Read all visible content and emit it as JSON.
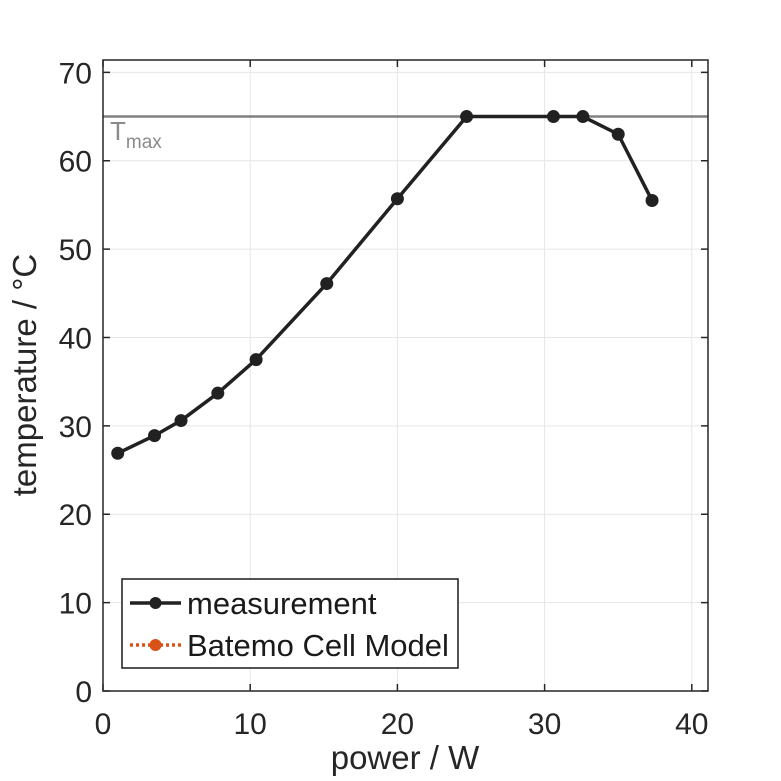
{
  "figure": {
    "background": "#ffffff"
  },
  "chart_data": {
    "type": "line",
    "title": "",
    "xlabel": "power / W",
    "ylabel": "temperature / °C",
    "xlim": [
      0,
      41.1
    ],
    "ylim": [
      0,
      71.4
    ],
    "x_ticks": [
      0,
      10,
      20,
      30,
      40
    ],
    "x_tick_labels": [
      "0",
      "10",
      "20",
      "30",
      "40"
    ],
    "y_ticks": [
      0,
      10,
      20,
      30,
      40,
      50,
      60,
      70
    ],
    "y_tick_labels": [
      "0",
      "10",
      "20",
      "30",
      "40",
      "50",
      "60",
      "70"
    ],
    "grid": true,
    "box": true,
    "tmax_line": {
      "y": 65,
      "color": "#808080",
      "label_main": "T",
      "label_sub": "max",
      "label_color": "#8a8a8a"
    },
    "series": [
      {
        "name": "measurement",
        "color": "#212121",
        "line": "solid",
        "marker": "filled-circle",
        "visible_in_plot": true,
        "points": [
          [
            1.0,
            26.9
          ],
          [
            3.5,
            28.9
          ],
          [
            5.3,
            30.6
          ],
          [
            7.8,
            33.7
          ],
          [
            10.4,
            37.5
          ],
          [
            15.2,
            46.1
          ],
          [
            20.0,
            55.7
          ],
          [
            24.7,
            65.0
          ],
          [
            30.6,
            65.0
          ],
          [
            32.6,
            65.0
          ],
          [
            35.0,
            63.0
          ],
          [
            37.3,
            55.5
          ]
        ]
      },
      {
        "name": "Batemo Cell Model",
        "color": "#d95319",
        "line": "dotted",
        "marker": "filled-circle",
        "visible_in_plot": false,
        "points": []
      }
    ],
    "legend": {
      "position": "south-west-inside"
    },
    "style": {
      "grid_color": "#e6e6e6",
      "axis_color": "#262626",
      "tick_label_color": "#262626",
      "text_color": "#1a1a1a"
    }
  }
}
